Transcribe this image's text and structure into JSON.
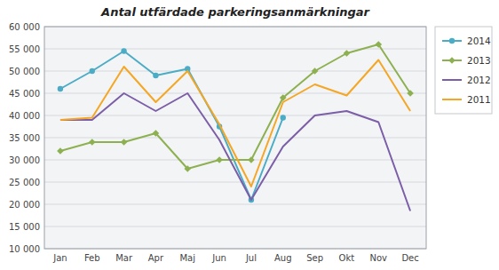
{
  "chart_data": {
    "type": "line",
    "title": "Antal utfärdade parkeringsanmärkningar",
    "categories": [
      "Jan",
      "Feb",
      "Mar",
      "Apr",
      "Maj",
      "Jun",
      "Jul",
      "Aug",
      "Sep",
      "Okt",
      "Nov",
      "Dec"
    ],
    "series": [
      {
        "name": "2014",
        "color": "#4BACC6",
        "marker": "circle",
        "values": [
          46000,
          50000,
          54500,
          49000,
          50500,
          37500,
          21000,
          39500,
          null,
          null,
          null,
          null
        ]
      },
      {
        "name": "2013",
        "color": "#8DB050",
        "marker": "diamond",
        "values": [
          32000,
          34000,
          34000,
          36000,
          28000,
          30000,
          30000,
          44000,
          50000,
          54000,
          56000,
          45000
        ]
      },
      {
        "name": "2012",
        "color": "#7B5EA7",
        "values": [
          39000,
          39000,
          45000,
          41000,
          45000,
          34500,
          21000,
          33000,
          40000,
          41000,
          38500,
          18500
        ]
      },
      {
        "name": "2011",
        "color": "#F5A623",
        "values": [
          39000,
          39500,
          51000,
          43000,
          50000,
          38000,
          24000,
          43000,
          47000,
          44500,
          52500,
          41000
        ]
      }
    ],
    "ylim": [
      10000,
      60000
    ],
    "yticks": [
      {
        "value": 10000,
        "label": "10 000"
      },
      {
        "value": 15000,
        "label": "15 000"
      },
      {
        "value": 20000,
        "label": "20 000"
      },
      {
        "value": 25000,
        "label": "25 000"
      },
      {
        "value": 30000,
        "label": "30 000"
      },
      {
        "value": 35000,
        "label": "35 000"
      },
      {
        "value": 40000,
        "label": "40 000"
      },
      {
        "value": 45000,
        "label": "45 000"
      },
      {
        "value": 50000,
        "label": "50 000"
      },
      {
        "value": 55000,
        "label": "55 000"
      },
      {
        "value": 60000,
        "label": "60 000"
      }
    ],
    "grid": true,
    "legend": "right"
  }
}
